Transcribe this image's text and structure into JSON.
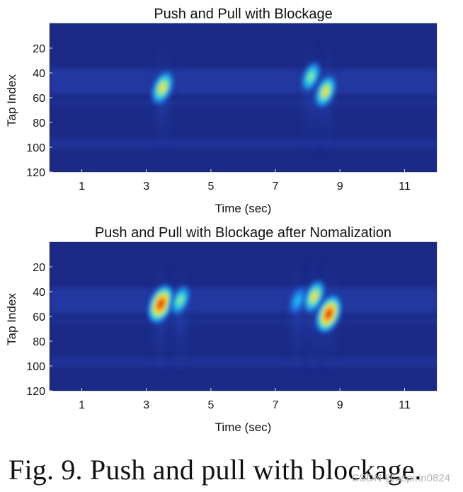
{
  "chart_data": [
    {
      "type": "heatmap",
      "title": "Push and Pull with Blockage",
      "xlabel": "Time (sec)",
      "ylabel": "Tap Index",
      "xlim": [
        0,
        12
      ],
      "ylim": [
        0,
        120
      ],
      "y_inverted": true,
      "xticks": [
        1,
        3,
        5,
        7,
        9,
        11
      ],
      "yticks": [
        20,
        40,
        60,
        80,
        100,
        120
      ],
      "colormap": "jet",
      "background_color": "#1b2a86",
      "grid": false,
      "blobs": [
        {
          "x": 3.5,
          "y": 52,
          "intensity": 0.7
        },
        {
          "x": 8.1,
          "y": 43,
          "intensity": 0.45
        },
        {
          "x": 8.55,
          "y": 55,
          "intensity": 0.62
        }
      ]
    },
    {
      "type": "heatmap",
      "title": "Push and Pull with Blockage after Nomalization",
      "xlabel": "Time (sec)",
      "ylabel": "Tap Index",
      "xlim": [
        0,
        12
      ],
      "ylim": [
        0,
        120
      ],
      "y_inverted": true,
      "xticks": [
        1,
        3,
        5,
        7,
        9,
        11
      ],
      "yticks": [
        20,
        40,
        60,
        80,
        100,
        120
      ],
      "colormap": "jet",
      "background_color": "#1b2a86",
      "grid": false,
      "blobs": [
        {
          "x": 3.45,
          "y": 50,
          "intensity": 1.0
        },
        {
          "x": 4.05,
          "y": 47,
          "intensity": 0.45
        },
        {
          "x": 7.7,
          "y": 47,
          "intensity": 0.35
        },
        {
          "x": 8.2,
          "y": 44,
          "intensity": 0.65
        },
        {
          "x": 8.65,
          "y": 58,
          "intensity": 0.95
        }
      ]
    }
  ],
  "caption": "Fig. 9.  Push and pull with blockage.",
  "watermark": "CSDN @aspirin0824"
}
